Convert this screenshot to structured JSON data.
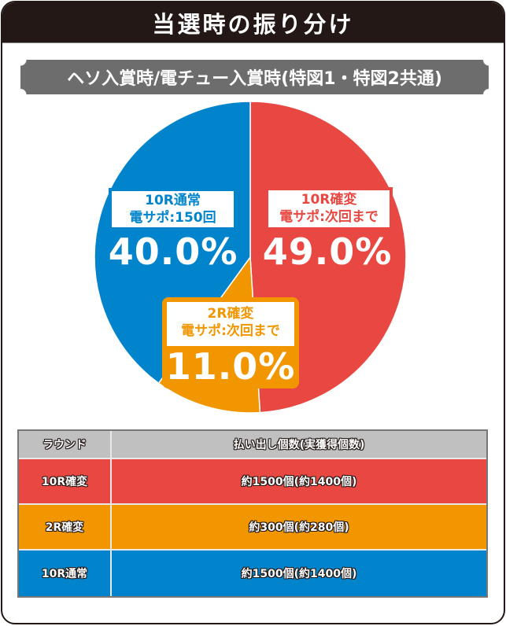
{
  "title": "当選時の振り分け",
  "subtitle": "ヘソ入賞時/電チュー入賞時(特図1・特図2共通)",
  "colors": {
    "title_bg": "#231815",
    "subtitle_bg": "#6d6d6d",
    "red": "#e84841",
    "orange": "#f29600",
    "blue": "#0284cc",
    "table_header": "#c0c0c0"
  },
  "pie": {
    "slices": [
      {
        "name": "10R確変",
        "line1": "10R確変",
        "line2": "電サポ:次回まで",
        "percent_label": "49.0%",
        "color": "#e84841"
      },
      {
        "name": "2R確変",
        "line1": "2R確変",
        "line2": "電サポ:次回まで",
        "percent_label": "11.0%",
        "color": "#f29600"
      },
      {
        "name": "10R通常",
        "line1": "10R通常",
        "line2": "電サポ:150回",
        "percent_label": "40.0%",
        "color": "#0284cc"
      }
    ]
  },
  "chart_data": {
    "type": "pie",
    "title": "当選時の振り分け",
    "subtitle": "ヘソ入賞時/電チュー入賞時(特図1・特図2共通)",
    "categories": [
      "10R確変 電サポ:次回まで",
      "2R確変 電サポ:次回まで",
      "10R通常 電サポ:150回"
    ],
    "values": [
      49.0,
      11.0,
      40.0
    ],
    "colors": [
      "#e84841",
      "#f29600",
      "#0284cc"
    ],
    "unit": "%",
    "table": {
      "columns": [
        "ラウンド",
        "払い出し個数(実獲得個数)"
      ],
      "rows": [
        [
          "10R確変",
          "約1500個(約1400個)"
        ],
        [
          "2R確変",
          "約300個(約280個)"
        ],
        [
          "10R通常",
          "約1500個(約1400個)"
        ]
      ]
    }
  },
  "table": {
    "headers": {
      "round": "ラウンド",
      "payout": "払い出し個数(実獲得個数)"
    },
    "rows": [
      {
        "round": "10R確変",
        "payout": "約1500個(約1400個)",
        "color": "#e84841"
      },
      {
        "round": "2R確変",
        "payout": "約300個(約280個)",
        "color": "#f29600"
      },
      {
        "round": "10R通常",
        "payout": "約1500個(約1400個)",
        "color": "#0284cc"
      }
    ]
  }
}
